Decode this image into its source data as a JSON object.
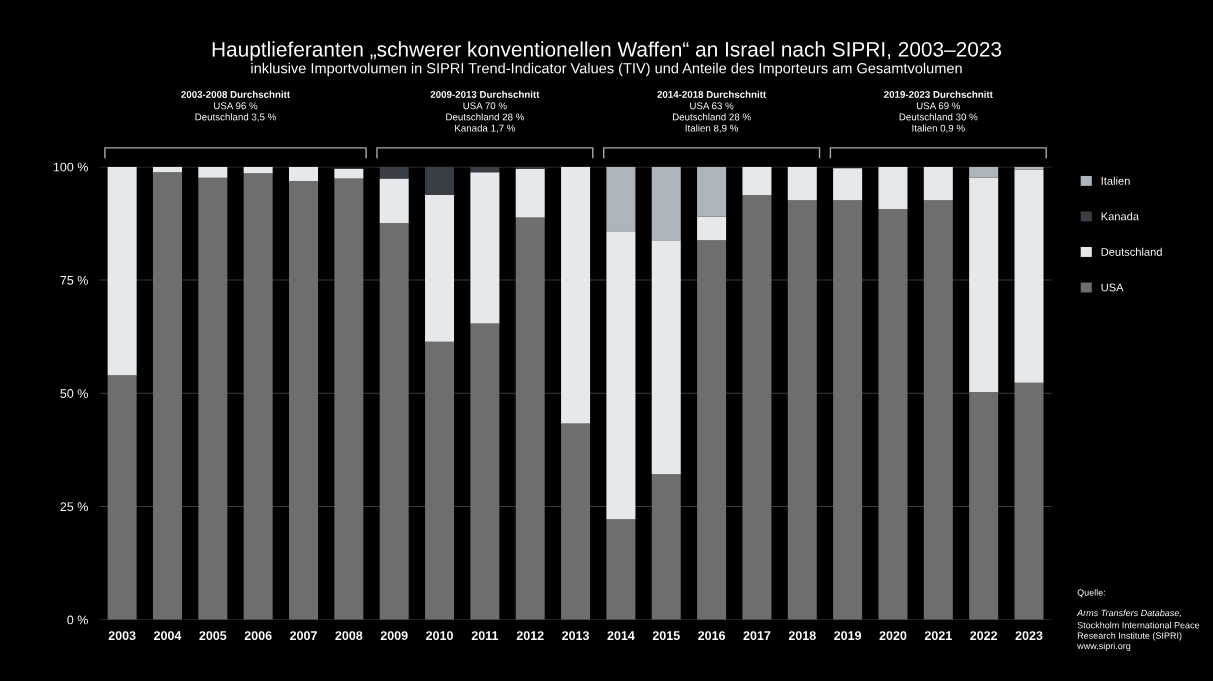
{
  "chart_data": {
    "type": "bar",
    "stacked": true,
    "title": "Hauptlieferanten „schwerer konventionellen Waffen“ an Israel nach SIPRI, 2003–2023",
    "subtitle": "inklusive Importvolumen in SIPRI Trend-Indicator Values (TIV) und Anteile des Importeurs am Gesamtvolumen",
    "categories": [
      "2003",
      "2004",
      "2005",
      "2006",
      "2007",
      "2008",
      "2009",
      "2010",
      "2011",
      "2012",
      "2013",
      "2014",
      "2015",
      "2016",
      "2017",
      "2018",
      "2019",
      "2020",
      "2021",
      "2022",
      "2023"
    ],
    "series": [
      {
        "name": "USA",
        "color": "#6e6e6e",
        "values": [
          54,
          98.8,
          97.6,
          98.6,
          96.9,
          97.4,
          87.6,
          61.4,
          65.4,
          88.8,
          43.3,
          22.2,
          32.1,
          83.8,
          93.8,
          92.6,
          92.6,
          90.7,
          92.6,
          50.3,
          52.3
        ]
      },
      {
        "name": "Deutschland",
        "color": "#e6e9ec",
        "values": [
          46,
          1.2,
          2.4,
          1.4,
          3.1,
          2.2,
          9.8,
          32.4,
          33.4,
          10.8,
          56.7,
          63.6,
          51.7,
          5.2,
          6.2,
          7.4,
          7.1,
          9.3,
          7.4,
          47.3,
          47.1
        ]
      },
      {
        "name": "Kanada",
        "color": "#393d44",
        "values": [
          null,
          null,
          null,
          null,
          null,
          null,
          2.6,
          6.2,
          1.2,
          0.4,
          null,
          null,
          null,
          null,
          null,
          null,
          null,
          null,
          null,
          null,
          null
        ]
      },
      {
        "name": "Italien",
        "color": "#adb4bb",
        "values": [
          null,
          null,
          null,
          null,
          null,
          null,
          null,
          null,
          null,
          null,
          null,
          14.2,
          16.2,
          11.0,
          null,
          null,
          null,
          null,
          null,
          2.4,
          0.6
        ]
      }
    ],
    "ylim": [
      0,
      100
    ],
    "yticks": [
      {
        "value": 0,
        "label": "0 %"
      },
      {
        "value": 25,
        "label": "25 %"
      },
      {
        "value": 50,
        "label": "50 %"
      },
      {
        "value": 75,
        "label": "75 %"
      },
      {
        "value": 100,
        "label": "100 %"
      }
    ],
    "grid": "y",
    "legend": "right",
    "annotations": [
      "2003-2008 Durchschnitt\nUSA 96 %\nDeutschland 3,5 %",
      "2009-2013 Durchschnitt\nUSA 70 %\nDeutschland 28 %\nKanada 1,7 %",
      "2014-2018 Durchschnitt\nUSA 63 %\nDeutschland 28 %\nItalien 8,9 %",
      "2019-2023 Durchschnitt\nUSA 69 %\nDeutschland 30 %\nItalien 0,9 %",
      "Quelle:",
      "Arms Transfers Database,",
      "Stockholm International Peace\nResearch Institute (SIPRI)\nwww.sipri.org"
    ]
  }
}
